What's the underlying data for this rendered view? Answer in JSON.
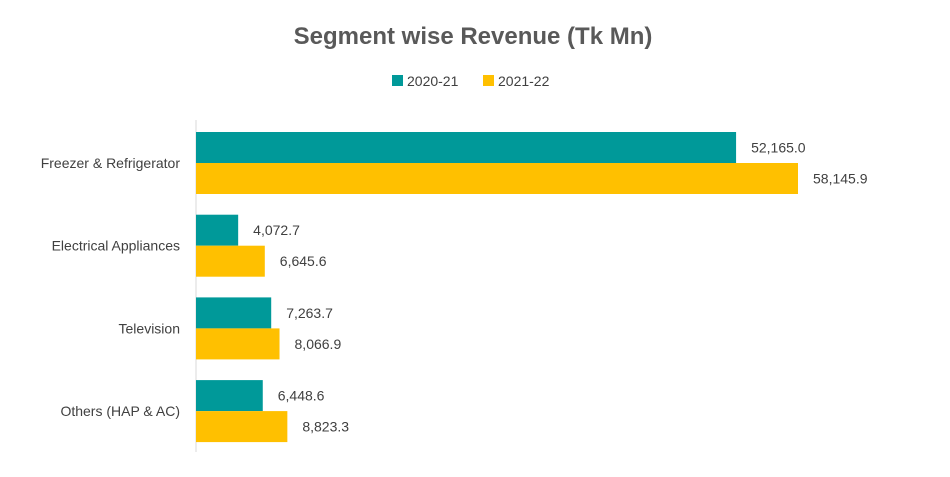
{
  "chart_data": {
    "type": "bar",
    "orientation": "horizontal",
    "title": "Segment wise Revenue (Tk Mn)",
    "categories": [
      "Freezer & Refrigerator",
      "Electrical Appliances",
      "Television",
      "Others (HAP & AC)"
    ],
    "series": [
      {
        "name": "2020-21",
        "color": "#009999",
        "values": [
          52165.0,
          4072.7,
          7263.7,
          6448.6
        ],
        "labels": [
          "52,165.0",
          "4,072.7",
          "7,263.7",
          "6,448.6"
        ]
      },
      {
        "name": "2021-22",
        "color": "#FFC000",
        "values": [
          58145.9,
          6645.6,
          8066.9,
          8823.3
        ],
        "labels": [
          "58,145.9",
          "6,645.6",
          "8,066.9",
          "8,823.3"
        ]
      }
    ],
    "xlim": [
      0,
      58145.9
    ],
    "grid": false,
    "legend_position": "top-center"
  }
}
